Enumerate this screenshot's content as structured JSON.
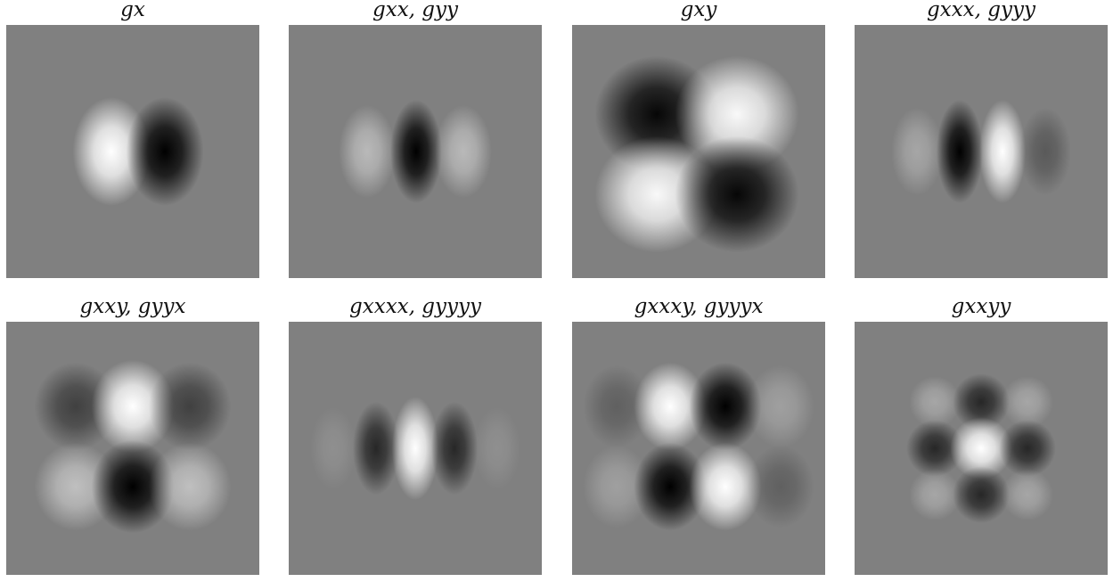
{
  "figure": {
    "panels": [
      {
        "title": "gₓ",
        "title_text": "gx",
        "filter": "gx"
      },
      {
        "title": "gxx, gyy",
        "filter": "gxx"
      },
      {
        "title": "gxy",
        "filter": "gxy"
      },
      {
        "title": "gxxx, gyyy",
        "filter": "gxxx"
      },
      {
        "title": "gxxy, gyyx",
        "filter": "gxxy"
      },
      {
        "title": "gxxxx, gyyyy",
        "filter": "gxxxx"
      },
      {
        "title": "gxxxy, gyyyx",
        "filter": "gxxxy"
      },
      {
        "title": "gxxyy",
        "filter": "gxxyy"
      }
    ],
    "colors": {
      "background": "#808080",
      "positive": "#ffffff",
      "negative": "#000000"
    }
  }
}
